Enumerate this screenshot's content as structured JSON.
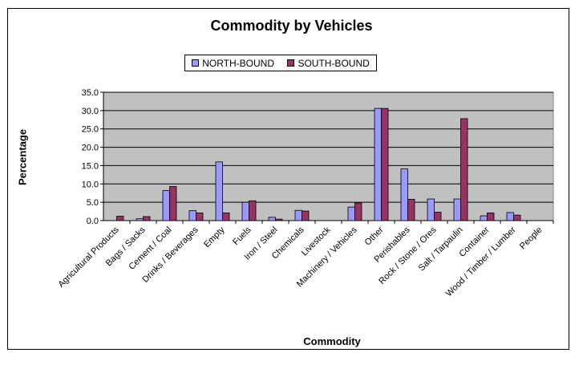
{
  "chart_data": {
    "type": "bar",
    "title": "Commodity by Vehicles",
    "xlabel": "Commodity",
    "ylabel": "Percentage",
    "ylim": [
      0,
      35
    ],
    "yticks": [
      "0.0",
      "5.0",
      "10.0",
      "15.0",
      "20.0",
      "25.0",
      "30.0",
      "35.0"
    ],
    "grid": true,
    "legend_position": "top",
    "categories": [
      "Agricultural Products",
      "Bags / Sacks",
      "Cement / Coal",
      "Drinks / Beverages",
      "Empty",
      "Fuels",
      "Iron / Steel",
      "Chemicals",
      "Livestock",
      "Machinery / Vehicles",
      "Other",
      "Perishables",
      "Rock / Stone / Ores",
      "Salt / Tarpaulin",
      "Container",
      "Wood / Timber / Lumber",
      "People"
    ],
    "series": [
      {
        "name": "NORTH-BOUND",
        "color": "#9999ff",
        "values": [
          0.0,
          0.5,
          8.2,
          2.7,
          16.0,
          5.0,
          0.9,
          2.8,
          0.0,
          3.7,
          30.6,
          14.1,
          5.9,
          5.9,
          1.3,
          2.2,
          0.0
        ]
      },
      {
        "name": "SOUTH-BOUND",
        "color": "#993366",
        "values": [
          1.2,
          1.1,
          9.3,
          2.1,
          2.1,
          5.4,
          0.4,
          2.6,
          0.0,
          4.8,
          30.6,
          5.8,
          2.3,
          27.8,
          2.1,
          1.5,
          0.0
        ]
      }
    ],
    "plot_background": "#c0c0c0"
  }
}
